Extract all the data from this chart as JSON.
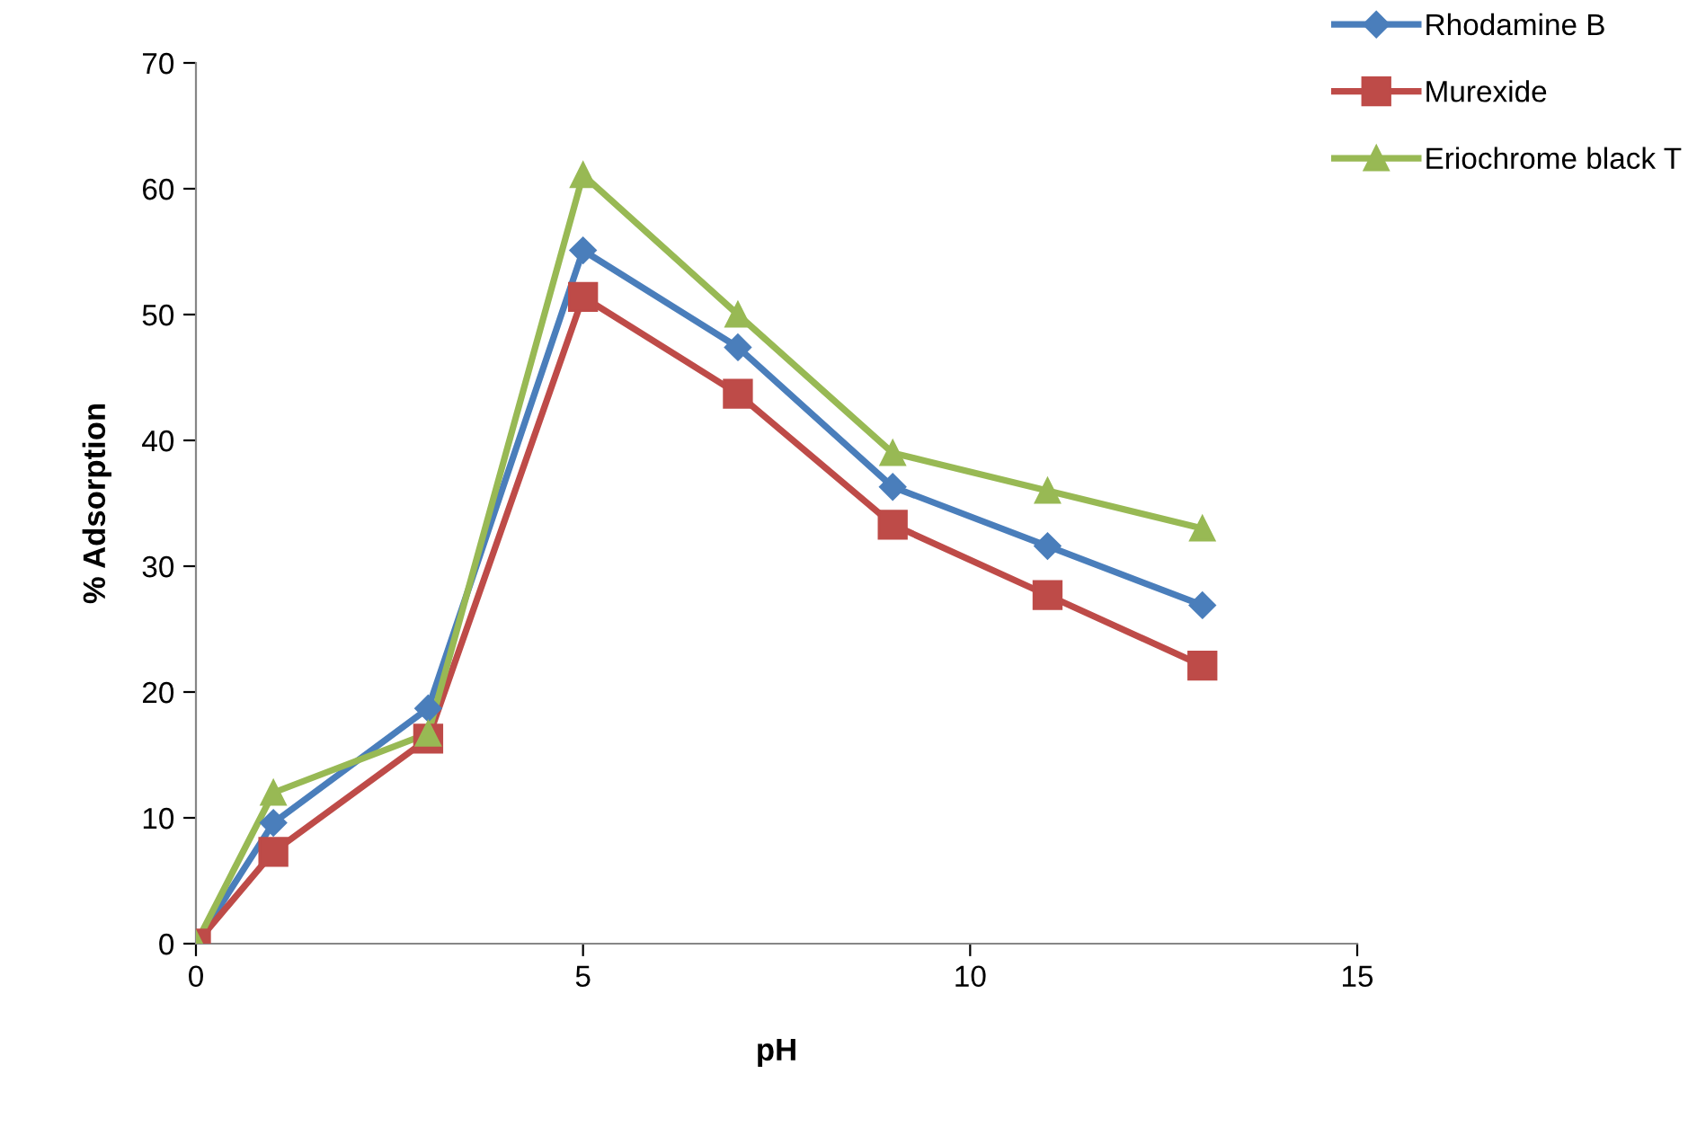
{
  "chart_data": {
    "type": "line",
    "xlabel": "pH",
    "ylabel": "% Adsorption",
    "x": [
      0,
      1,
      3,
      5,
      7,
      9,
      11,
      13
    ],
    "series": [
      {
        "name": "Rhodamine B",
        "color": "#4a7ebb",
        "marker": "diamond",
        "values": [
          0,
          9.6,
          18.7,
          55.1,
          47.4,
          36.3,
          31.6,
          26.9
        ]
      },
      {
        "name": "Murexide",
        "color": "#be4b48",
        "marker": "square",
        "values": [
          0,
          7.3,
          16.3,
          51.4,
          43.7,
          33.3,
          27.7,
          22.1
        ]
      },
      {
        "name": "Eriochrome black T",
        "color": "#98b954",
        "marker": "triangle",
        "values": [
          0,
          12,
          16.7,
          61.1,
          50,
          39,
          36,
          33
        ]
      }
    ],
    "xlim": [
      0,
      15
    ],
    "xticks": [
      0,
      5,
      10,
      15
    ],
    "ylim": [
      0,
      70
    ],
    "yticks": [
      0,
      10,
      20,
      30,
      40,
      50,
      60,
      70
    ],
    "grid": false,
    "legend": "top right",
    "line_style": "solid"
  }
}
